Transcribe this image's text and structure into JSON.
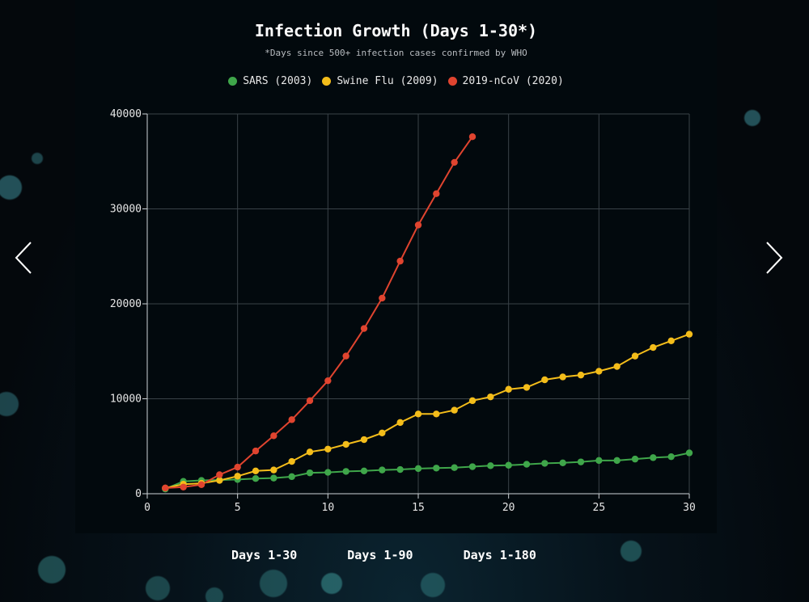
{
  "nav": {
    "prev_icon": "chevron-left-icon",
    "next_icon": "chevron-right-icon"
  },
  "range_tabs": [
    {
      "label": "Days 1-30"
    },
    {
      "label": "Days 1-90"
    },
    {
      "label": "Days 1-180"
    }
  ],
  "chart_data": {
    "type": "line",
    "title": "Infection Growth (Days 1-30*)",
    "subtitle": "*Days since 500+ infection cases confirmed by WHO",
    "xlabel": "",
    "ylabel": "",
    "xlim": [
      0,
      30
    ],
    "ylim": [
      0,
      40000
    ],
    "x_ticks": [
      0,
      5,
      10,
      15,
      20,
      25,
      30
    ],
    "y_ticks": [
      0,
      10000,
      20000,
      30000,
      40000
    ],
    "grid": true,
    "legend_position": "top-center",
    "series": [
      {
        "name": "SARS (2003)",
        "color": "#3fa64a",
        "x": [
          1,
          2,
          3,
          4,
          5,
          6,
          7,
          8,
          9,
          10,
          11,
          12,
          13,
          14,
          15,
          16,
          17,
          18,
          19,
          20,
          21,
          22,
          23,
          24,
          25,
          26,
          27,
          28,
          29,
          30
        ],
        "values": [
          500,
          1300,
          1400,
          1450,
          1500,
          1600,
          1650,
          1800,
          2200,
          2250,
          2350,
          2400,
          2500,
          2550,
          2650,
          2700,
          2750,
          2850,
          2950,
          3000,
          3100,
          3200,
          3250,
          3350,
          3500,
          3500,
          3650,
          3800,
          3900,
          4300
        ]
      },
      {
        "name": "Swine Flu (2009)",
        "color": "#f4bd1a",
        "x": [
          1,
          2,
          3,
          4,
          5,
          6,
          7,
          8,
          9,
          10,
          11,
          12,
          13,
          14,
          15,
          16,
          17,
          18,
          19,
          20,
          21,
          22,
          23,
          24,
          25,
          26,
          27,
          28,
          29,
          30
        ],
        "values": [
          600,
          1000,
          1100,
          1400,
          1850,
          2400,
          2500,
          3400,
          4400,
          4700,
          5200,
          5700,
          6400,
          7500,
          8400,
          8400,
          8800,
          9800,
          10200,
          11000,
          11200,
          12000,
          12300,
          12500,
          12900,
          13400,
          14500,
          15400,
          16100,
          16800
        ]
      },
      {
        "name": "2019-nCoV (2020)",
        "color": "#e0442f",
        "x": [
          1,
          2,
          3,
          4,
          5,
          6,
          7,
          8,
          9,
          10,
          11,
          12,
          13,
          14,
          15,
          16,
          17,
          18
        ],
        "values": [
          600,
          700,
          950,
          2000,
          2800,
          4500,
          6100,
          7800,
          9800,
          11900,
          14500,
          17400,
          20600,
          24500,
          28300,
          31600,
          34900,
          37600
        ]
      }
    ]
  }
}
